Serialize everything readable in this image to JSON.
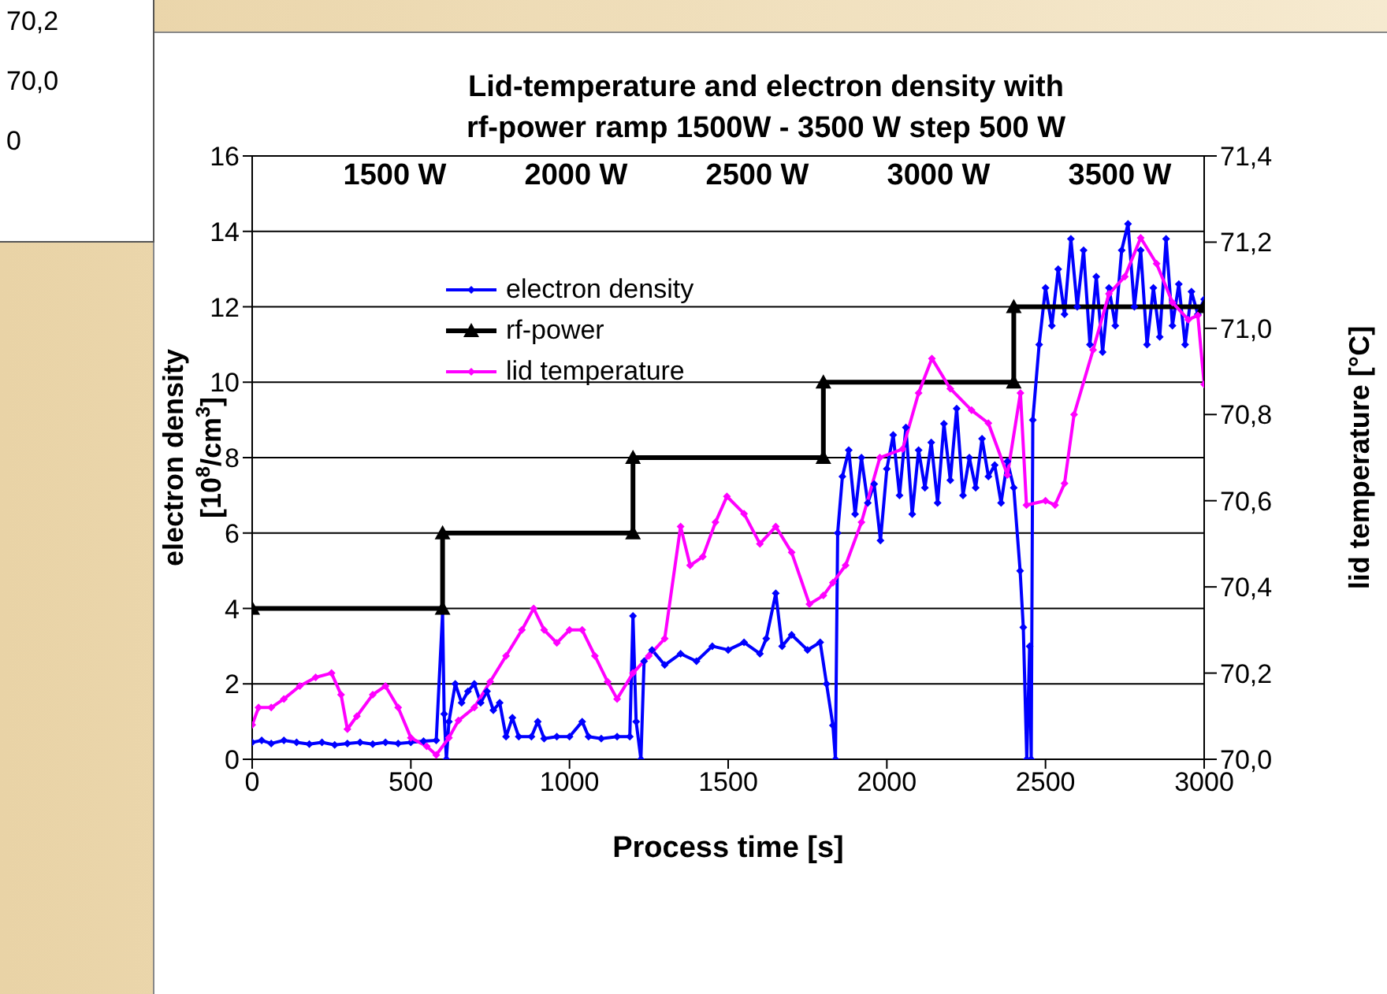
{
  "chart_data": {
    "type": "line",
    "title": "Lid-temperature and electron density with\nrf-power ramp 1500W - 3500 W step 500 W",
    "xlabel": "Process time [s]",
    "ylabel": "electron density\n[10$^{8}$/cm$^{3}$]",
    "y2label": "lid temperature [°C]",
    "xlim": [
      0,
      3000
    ],
    "xticks": [
      0,
      500,
      1000,
      1500,
      2000,
      2500,
      3000
    ],
    "ylim": [
      0,
      16
    ],
    "yticks": [
      0,
      2,
      4,
      6,
      8,
      10,
      12,
      14,
      16
    ],
    "y2lim": [
      70.0,
      71.4
    ],
    "y2ticks": [
      {
        "value": 70.0,
        "label": "70,0"
      },
      {
        "value": 70.2,
        "label": "70,2"
      },
      {
        "value": 70.4,
        "label": "70,4"
      },
      {
        "value": 70.6,
        "label": "70,6"
      },
      {
        "value": 70.8,
        "label": "70,8"
      },
      {
        "value": 71.0,
        "label": "71,0"
      },
      {
        "value": 71.2,
        "label": "71,2"
      },
      {
        "value": 71.4,
        "label": "71,4"
      }
    ],
    "grid": "y",
    "legend": "top left",
    "series": [
      {
        "name": "electron density",
        "color": "#0000ff",
        "marker": "diamond",
        "x": [
          0,
          30,
          60,
          100,
          140,
          180,
          220,
          260,
          300,
          340,
          380,
          420,
          460,
          500,
          540,
          580,
          600,
          605,
          612,
          620,
          640,
          660,
          680,
          700,
          720,
          740,
          760,
          780,
          800,
          820,
          840,
          880,
          900,
          920,
          960,
          1000,
          1040,
          1060,
          1100,
          1150,
          1190,
          1200,
          1210,
          1225,
          1235,
          1260,
          1300,
          1350,
          1400,
          1450,
          1500,
          1550,
          1600,
          1620,
          1650,
          1670,
          1700,
          1750,
          1790,
          1810,
          1830,
          1838,
          1845,
          1860,
          1880,
          1900,
          1920,
          1940,
          1960,
          1980,
          2000,
          2020,
          2040,
          2060,
          2080,
          2100,
          2120,
          2140,
          2160,
          2180,
          2200,
          2220,
          2240,
          2260,
          2280,
          2300,
          2320,
          2340,
          2360,
          2380,
          2400,
          2420,
          2430,
          2441,
          2450,
          2455,
          2460,
          2480,
          2500,
          2520,
          2540,
          2560,
          2580,
          2600,
          2620,
          2640,
          2660,
          2680,
          2700,
          2720,
          2740,
          2760,
          2780,
          2800,
          2820,
          2840,
          2860,
          2880,
          2900,
          2920,
          2940,
          2960,
          2980,
          3000
        ],
        "values": [
          0.45,
          0.5,
          0.42,
          0.5,
          0.45,
          0.4,
          0.45,
          0.38,
          0.42,
          0.45,
          0.4,
          0.45,
          0.42,
          0.45,
          0.48,
          0.5,
          3.9,
          1.2,
          0,
          1.0,
          2.0,
          1.5,
          1.8,
          2.0,
          1.5,
          1.8,
          1.3,
          1.5,
          0.6,
          1.1,
          0.6,
          0.6,
          1.0,
          0.55,
          0.6,
          0.6,
          1.0,
          0.6,
          0.55,
          0.6,
          0.6,
          3.8,
          1.0,
          0,
          2.6,
          2.9,
          2.5,
          2.8,
          2.6,
          3.0,
          2.9,
          3.1,
          2.8,
          3.2,
          4.4,
          3.0,
          3.3,
          2.9,
          3.1,
          2.0,
          0.9,
          0,
          6.0,
          7.5,
          8.2,
          6.5,
          8.0,
          6.8,
          7.3,
          5.8,
          7.7,
          8.6,
          7.0,
          8.8,
          6.5,
          8.2,
          7.2,
          8.4,
          6.8,
          8.9,
          7.4,
          9.3,
          7.0,
          8.0,
          7.2,
          8.5,
          7.5,
          7.8,
          6.8,
          7.9,
          7.2,
          5.0,
          3.5,
          0,
          3.0,
          0,
          9.0,
          11.0,
          12.5,
          11.5,
          13.0,
          11.8,
          13.8,
          12.0,
          13.5,
          11.0,
          12.8,
          10.8,
          12.5,
          11.5,
          13.5,
          14.2,
          12.0,
          13.5,
          11.0,
          12.5,
          11.2,
          13.8,
          11.5,
          12.6,
          11.0,
          12.4,
          11.8,
          12.2
        ]
      },
      {
        "name": "rf-power",
        "color": "#000000",
        "marker": "triangle",
        "x": [
          0,
          600,
          600,
          1200,
          1200,
          1800,
          1800,
          2400,
          2400,
          3000
        ],
        "values": [
          4,
          4,
          6,
          6,
          8,
          8,
          10,
          10,
          12,
          12
        ]
      },
      {
        "name": "lid temperature",
        "color": "#ff00ff",
        "marker": "diamond",
        "axis": "y2",
        "x": [
          0,
          20,
          60,
          100,
          150,
          200,
          250,
          280,
          300,
          330,
          380,
          420,
          460,
          500,
          550,
          580,
          620,
          650,
          700,
          750,
          800,
          850,
          887,
          920,
          960,
          1000,
          1040,
          1080,
          1120,
          1150,
          1200,
          1250,
          1300,
          1350,
          1380,
          1420,
          1460,
          1496,
          1550,
          1600,
          1650,
          1700,
          1756,
          1800,
          1830,
          1870,
          1920,
          1978,
          2050,
          2100,
          2142,
          2200,
          2267,
          2320,
          2380,
          2421,
          2440,
          2500,
          2530,
          2560,
          2590,
          2650,
          2700,
          2750,
          2800,
          2850,
          2900,
          2950,
          2980,
          3000
        ],
        "values": [
          70.08,
          70.12,
          70.12,
          70.14,
          70.17,
          70.19,
          70.2,
          70.15,
          70.07,
          70.1,
          70.15,
          70.17,
          70.12,
          70.05,
          70.03,
          70.01,
          70.05,
          70.09,
          70.12,
          70.18,
          70.24,
          70.3,
          70.35,
          70.3,
          70.27,
          70.3,
          70.3,
          70.24,
          70.18,
          70.14,
          70.2,
          70.24,
          70.28,
          70.54,
          70.45,
          70.47,
          70.55,
          70.61,
          70.57,
          70.5,
          70.54,
          70.48,
          70.36,
          70.38,
          70.41,
          70.45,
          70.55,
          70.7,
          70.72,
          70.85,
          70.93,
          70.86,
          70.81,
          70.78,
          70.66,
          70.85,
          70.59,
          70.6,
          70.59,
          70.64,
          70.8,
          70.95,
          71.08,
          71.12,
          71.21,
          71.15,
          71.06,
          71.02,
          71.03,
          70.87
        ]
      }
    ],
    "annotations": [
      "1500 W",
      "2000 W",
      "2500 W",
      "3000 W",
      "3500 W",
      "70,2",
      "70,0",
      "0"
    ]
  }
}
